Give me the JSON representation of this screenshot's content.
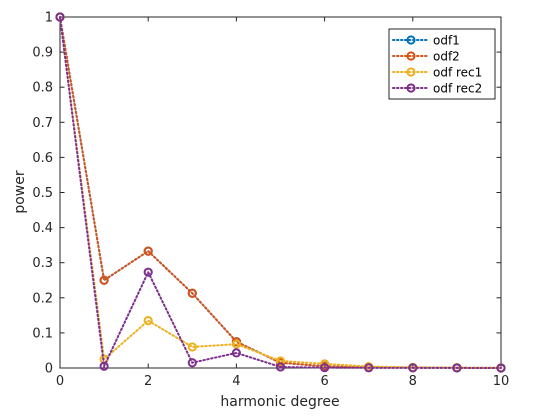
{
  "chart_data": {
    "type": "line",
    "xlabel": "harmonic degree",
    "ylabel": "power",
    "xlim": [
      0,
      10
    ],
    "ylim": [
      0,
      1
    ],
    "xticks": [
      0,
      2,
      4,
      6,
      8,
      10
    ],
    "yticks": [
      0,
      0.1,
      0.2,
      0.3,
      0.4,
      0.5,
      0.6,
      0.7,
      0.8,
      0.9,
      1
    ],
    "grid": false,
    "legend_position": "top-right",
    "line_style": "dotted",
    "marker": "circle",
    "x": [
      0,
      1,
      2,
      3,
      4,
      5,
      6,
      7,
      8,
      9,
      10
    ],
    "series": [
      {
        "name": "odf1",
        "color": "#0072BD",
        "values": [
          1,
          0.25,
          0.333,
          0.213,
          0.075,
          0.015,
          0.005,
          0.002,
          0.001,
          0.0005,
          0.0002
        ]
      },
      {
        "name": "odf2",
        "color": "#D95319",
        "values": [
          1,
          0.25,
          0.333,
          0.213,
          0.075,
          0.015,
          0.005,
          0.002,
          0.001,
          0.0005,
          0.0002
        ]
      },
      {
        "name": "odf rec1",
        "color": "#EDB120",
        "values": [
          1,
          0.025,
          0.135,
          0.06,
          0.068,
          0.02,
          0.012,
          0.004,
          0.002,
          0.001,
          0.0005
        ]
      },
      {
        "name": "odf rec2",
        "color": "#7E2F8E",
        "values": [
          1,
          0.005,
          0.273,
          0.015,
          0.043,
          0.003,
          0.001,
          0.0005,
          0.0003,
          0.0002,
          0.0001
        ]
      }
    ]
  }
}
